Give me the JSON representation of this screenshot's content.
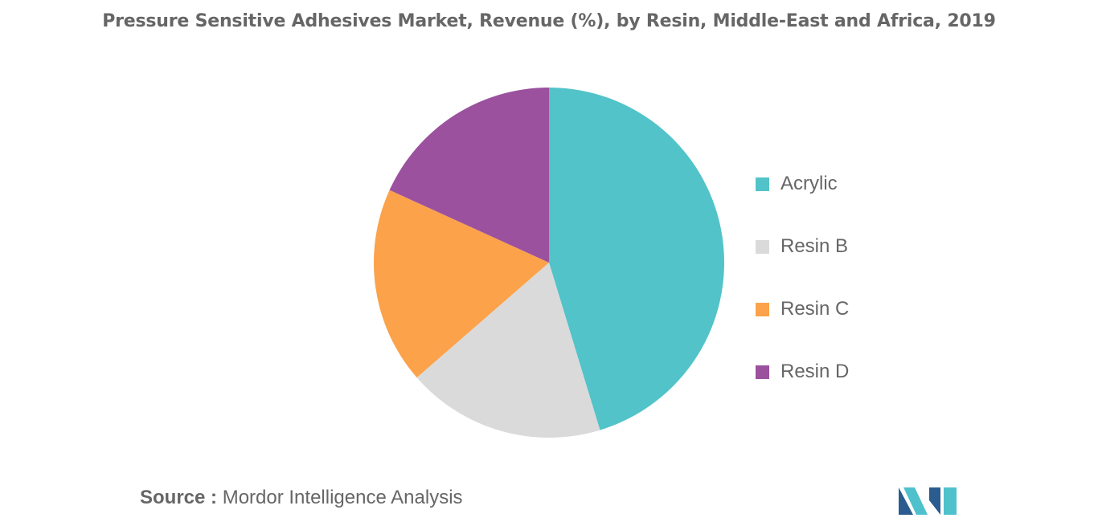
{
  "chart_data": {
    "type": "pie",
    "title": "Pressure Sensitive Adhesives Market, Revenue (%), by Resin, Middle-East and Africa, 2019",
    "series": [
      {
        "name": "Acrylic",
        "value": 45.3,
        "color": "#52c3c9"
      },
      {
        "name": "Resin B",
        "value": 18.3,
        "color": "#dadada"
      },
      {
        "name": "Resin C",
        "value": 18.2,
        "color": "#fba24a"
      },
      {
        "name": "Resin D",
        "value": 18.2,
        "color": "#9b519e"
      }
    ],
    "legend_position": "right"
  },
  "source": {
    "prefix": "Source :",
    "text": "Mordor Intelligence Analysis"
  },
  "logo": {
    "icon": "mordor-intelligence-logo",
    "colors": [
      "#2a5c8f",
      "#4fc1cc"
    ]
  }
}
